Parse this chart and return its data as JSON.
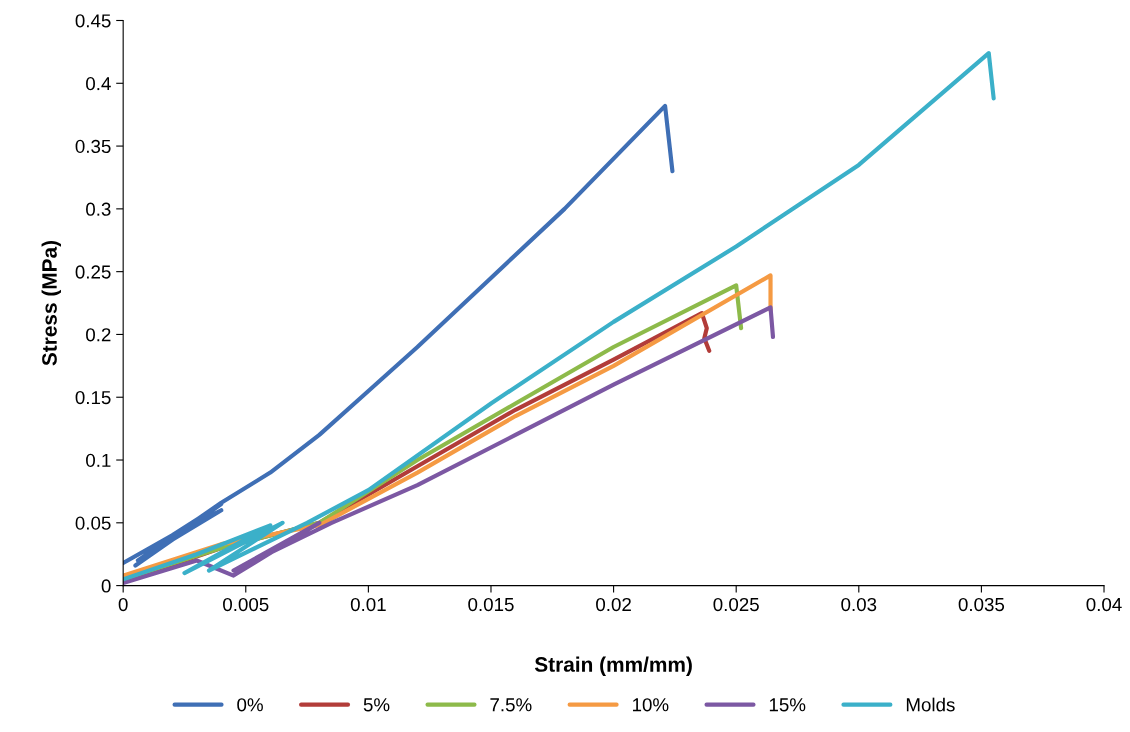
{
  "chart_data": {
    "type": "line",
    "xlabel": "Strain (mm/mm)",
    "ylabel": "Stress (MPa)",
    "xlim": [
      0,
      0.04
    ],
    "ylim": [
      0,
      0.45
    ],
    "xticks": [
      0,
      0.005,
      0.01,
      0.015,
      0.02,
      0.025,
      0.03,
      0.035,
      0.04
    ],
    "yticks": [
      0,
      0.05,
      0.1,
      0.15,
      0.2,
      0.25,
      0.3,
      0.35,
      0.4,
      0.45
    ],
    "grid": false,
    "legend": "bottom",
    "marker": "none",
    "line_style": "solid",
    "series": [
      {
        "name": "0%",
        "color": "#3f6fb5",
        "x": [
          0,
          0.002,
          0.004,
          0.0005,
          0.003,
          0.004,
          0.0006,
          0.004,
          0.006,
          0.008,
          0.01,
          0.012,
          0.015,
          0.018,
          0.0221,
          0.0224
        ],
        "values": [
          0.018,
          0.04,
          0.065,
          0.016,
          0.05,
          0.06,
          0.02,
          0.066,
          0.09,
          0.12,
          0.155,
          0.19,
          0.245,
          0.3,
          0.382,
          0.33
        ]
      },
      {
        "name": "5%",
        "color": "#b23c39",
        "x": [
          0,
          0.004,
          0.008,
          0.012,
          0.016,
          0.02,
          0.0236,
          0.0238,
          0.0237,
          0.0239
        ],
        "values": [
          0.003,
          0.03,
          0.05,
          0.095,
          0.14,
          0.18,
          0.217,
          0.205,
          0.197,
          0.187
        ]
      },
      {
        "name": "7.5%",
        "color": "#8dba4a",
        "x": [
          0,
          0.004,
          0.008,
          0.012,
          0.016,
          0.02,
          0.025,
          0.0252
        ],
        "values": [
          0.005,
          0.03,
          0.05,
          0.1,
          0.145,
          0.19,
          0.239,
          0.205
        ]
      },
      {
        "name": "10%",
        "color": "#f59a43",
        "x": [
          0,
          0.004,
          0.008,
          0.012,
          0.016,
          0.02,
          0.0264,
          0.0264
        ],
        "values": [
          0.008,
          0.033,
          0.048,
          0.09,
          0.135,
          0.175,
          0.247,
          0.219
        ]
      },
      {
        "name": "15%",
        "color": "#7c58a3",
        "x": [
          0,
          0.003,
          0.0045,
          0.008,
          0.0045,
          0.0085,
          0.012,
          0.016,
          0.02,
          0.0264,
          0.0265
        ],
        "values": [
          0.002,
          0.02,
          0.008,
          0.05,
          0.012,
          0.05,
          0.08,
          0.12,
          0.16,
          0.2215,
          0.198
        ]
      },
      {
        "name": "Molds",
        "color": "#3bb0c9",
        "x": [
          0,
          0.003,
          0.006,
          0.0025,
          0.0065,
          0.0035,
          0.0075,
          0.01,
          0.015,
          0.02,
          0.025,
          0.03,
          0.0353,
          0.0355
        ],
        "values": [
          0.005,
          0.025,
          0.048,
          0.01,
          0.05,
          0.012,
          0.05,
          0.076,
          0.145,
          0.21,
          0.27,
          0.335,
          0.424,
          0.388
        ]
      }
    ]
  }
}
